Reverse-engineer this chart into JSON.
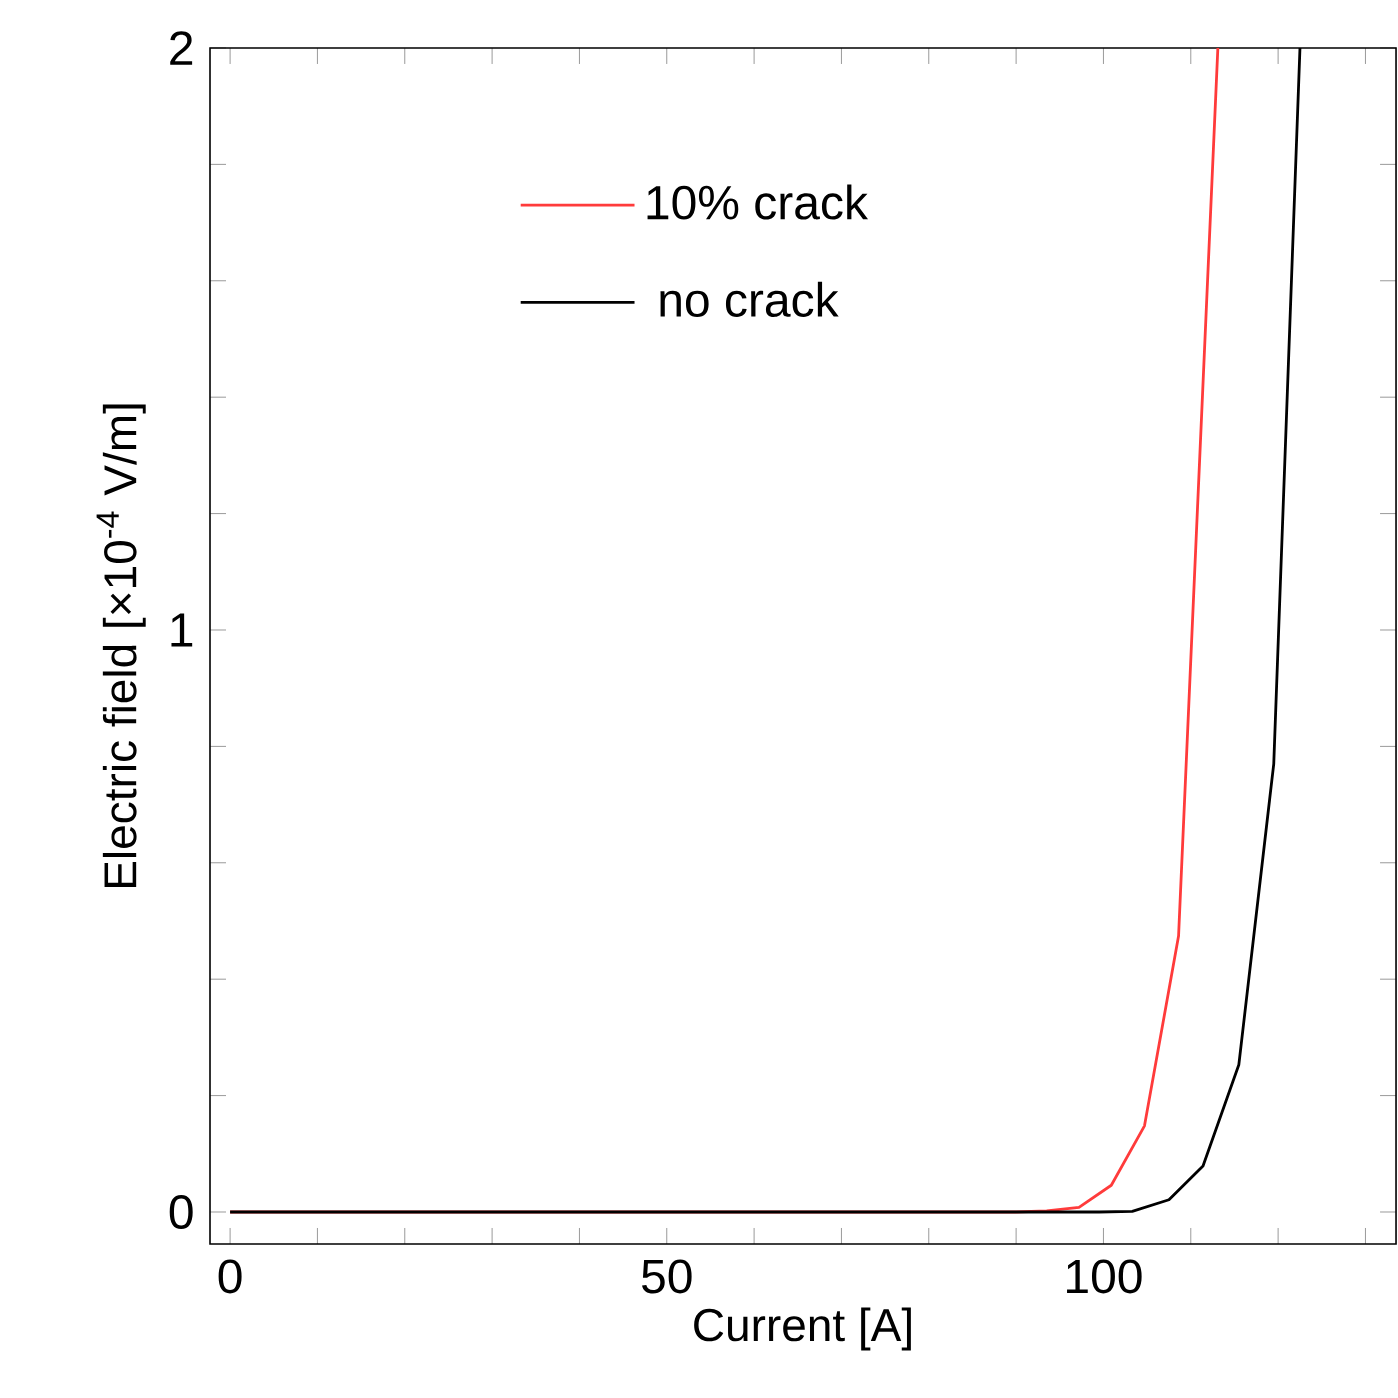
{
  "chart_data": {
    "type": "line",
    "xlabel": "Current [A]",
    "ylabel": "Electric field [×10$^{-4}$ V/m]",
    "xlim": [
      -2.3,
      133.5
    ],
    "ylim": [
      -0.055,
      2
    ],
    "xticks": [
      0,
      {
        "value": 10,
        "label": null
      },
      {
        "value": 20,
        "label": null
      },
      {
        "value": 30,
        "label": null
      },
      {
        "value": 40,
        "label": null
      },
      50,
      {
        "value": 60,
        "label": null
      },
      {
        "value": 70,
        "label": null
      },
      {
        "value": 80,
        "label": null
      },
      {
        "value": 90,
        "label": null
      },
      100,
      {
        "value": 110,
        "label": null
      },
      {
        "value": 120,
        "label": null
      },
      {
        "value": 130,
        "label": null
      }
    ],
    "yticks": [
      0,
      {
        "value": 0.2,
        "label": null
      },
      {
        "value": 0.4,
        "label": null
      },
      {
        "value": 0.6,
        "label": null
      },
      {
        "value": 0.8,
        "label": null
      },
      1,
      {
        "value": 1.2,
        "label": null
      },
      {
        "value": 1.4,
        "label": null
      },
      {
        "value": 1.6,
        "label": null
      },
      {
        "value": 1.8,
        "label": null
      },
      2
    ],
    "legend": "top left",
    "grid": false,
    "marker": "none",
    "line_style": "solid",
    "series": [
      {
        "name": "10% crack",
        "color": "#ff3b3b",
        "x": [
          0,
          90,
          93.5,
          97.2,
          100.9,
          104.7,
          108.6,
          113.1
        ],
        "values": [
          0,
          0,
          0.002,
          0.008,
          0.046,
          0.148,
          0.474,
          2
        ]
      },
      {
        "name": " no crack",
        "color": "#000000",
        "x": [
          0,
          95,
          99.5,
          103.3,
          107.5,
          111.4,
          115.5,
          119.5,
          122.5
        ],
        "values": [
          0,
          0,
          0,
          0.001,
          0.021,
          0.079,
          0.253,
          0.77,
          2
        ]
      }
    ]
  }
}
